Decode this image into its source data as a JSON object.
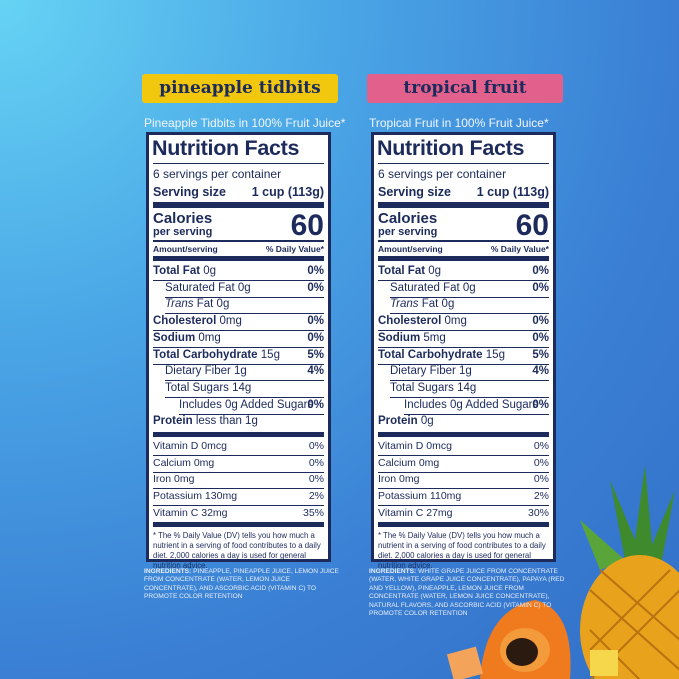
{
  "panels": [
    {
      "badge": "pineapple tidbits",
      "subtitle": "Pineapple Tidbits in 100% Fruit Juice*",
      "title": "Nutrition Facts",
      "servings": "6 servings per container",
      "serving_size_label": "Serving size",
      "serving_size": "1 cup (113g)",
      "calories_label": "Calories",
      "per_serving": "per serving",
      "calories": 60,
      "amount_header": "Amount/serving",
      "dv_header": "% Daily Value*",
      "nutrients": [
        {
          "name": "Total Fat",
          "amount": "0g",
          "dv": "0%"
        },
        {
          "name": "Saturated Fat",
          "amount": "0g",
          "dv": "0%"
        },
        {
          "name": "Trans",
          "amount": "Fat 0g"
        },
        {
          "name": "Cholesterol",
          "amount": "0mg",
          "dv": "0%"
        },
        {
          "name": "Sodium",
          "amount": "0mg",
          "dv": "0%"
        },
        {
          "name": "Total Carbohydrate",
          "amount": "15g",
          "dv": "5%"
        },
        {
          "name": "Dietary Fiber",
          "amount": "1g",
          "dv": "4%"
        },
        {
          "name": "Total Sugars",
          "amount": "14g"
        },
        {
          "name": "Includes 0g Added Sugars",
          "dv": "0%"
        },
        {
          "name": "Protein",
          "amount": "less than 1g"
        }
      ],
      "vitamins": [
        {
          "name": "Vitamin D 0mcg",
          "dv": "0%"
        },
        {
          "name": "Calcium 0mg",
          "dv": "0%"
        },
        {
          "name": "Iron 0mg",
          "dv": "0%"
        },
        {
          "name": "Potassium 130mg",
          "dv": "2%"
        },
        {
          "name": "Vitamin C 32mg",
          "dv": "35%"
        }
      ],
      "footnote": "* The % Daily Value (DV) tells you how much a nutrient in a serving of food contributes to a daily diet. 2,000 calories a day is used for general nutrition advice.",
      "ingredients_label": "INGREDIENTS:",
      "ingredients": "PINEAPPLE, PINEAPPLE JUICE, LEMON JUICE FROM CONCENTRATE (WATER, LEMON JUICE CONCENTRATE), AND ASCORBIC ACID (VITAMIN C) TO PROMOTE COLOR RETENTION"
    },
    {
      "badge": "tropical fruit",
      "subtitle": "Tropical Fruit in 100% Fruit Juice*",
      "title": "Nutrition Facts",
      "servings": "6 servings per container",
      "serving_size_label": "Serving size",
      "serving_size": "1 cup (113g)",
      "calories_label": "Calories",
      "per_serving": "per serving",
      "calories": 60,
      "amount_header": "Amount/serving",
      "dv_header": "% Daily Value*",
      "nutrients": [
        {
          "name": "Total Fat",
          "amount": "0g",
          "dv": "0%"
        },
        {
          "name": "Saturated Fat",
          "amount": "0g",
          "dv": "0%"
        },
        {
          "name": "Trans",
          "amount": "Fat 0g"
        },
        {
          "name": "Cholesterol",
          "amount": "0mg",
          "dv": "0%"
        },
        {
          "name": "Sodium",
          "amount": "5mg",
          "dv": "0%"
        },
        {
          "name": "Total Carbohydrate",
          "amount": "15g",
          "dv": "5%"
        },
        {
          "name": "Dietary Fiber",
          "amount": "1g",
          "dv": "4%"
        },
        {
          "name": "Total Sugars",
          "amount": "14g"
        },
        {
          "name": "Includes 0g Added Sugars",
          "dv": "0%"
        },
        {
          "name": "Protein",
          "amount": "0g"
        }
      ],
      "vitamins": [
        {
          "name": "Vitamin D 0mcg",
          "dv": "0%"
        },
        {
          "name": "Calcium 0mg",
          "dv": "0%"
        },
        {
          "name": "Iron 0mg",
          "dv": "0%"
        },
        {
          "name": "Potassium 110mg",
          "dv": "2%"
        },
        {
          "name": "Vitamin C 27mg",
          "dv": "30%"
        }
      ],
      "footnote": "* The % Daily Value (DV) tells you how much a nutrient in a serving of food contributes to a daily diet. 2,000 calories a day is used for general nutrition advice.",
      "ingredients_label": "INGREDIENTS:",
      "ingredients": "WHITE GRAPE JUICE FROM CONCENTRATE (WATER, WHITE GRAPE JUICE CONCENTRATE), PAPAYA (RED AND YELLOW), PINEAPPLE, LEMON JUICE FROM CONCENTRATE (WATER, LEMON JUICE CONCENTRATE), NATURAL FLAVORS, AND ASCORBIC ACID (VITAMIN C) TO PROMOTE COLOR RETENTION"
    }
  ]
}
